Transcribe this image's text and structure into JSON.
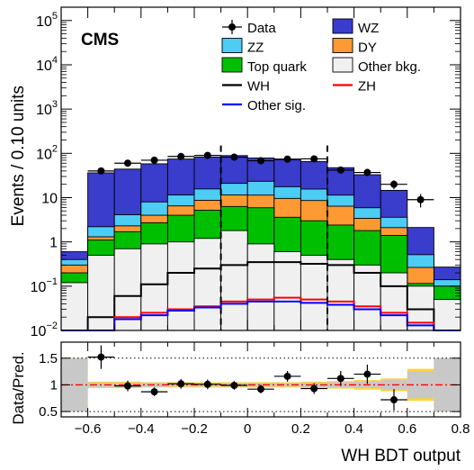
{
  "chart_data": [
    {
      "type": "stacked-histogram",
      "experiment_label": "CMS",
      "ylabel": "Events / 0.10 units",
      "yscale": "log",
      "ylim": [
        0.01,
        200000
      ],
      "xlim": [
        -0.7,
        0.8
      ],
      "y_ticks": [
        {
          "value": 0.01,
          "base": "10",
          "exp": "−2"
        },
        {
          "value": 0.1,
          "base": "10",
          "exp": "−1"
        },
        {
          "value": 1,
          "base": "1",
          "exp": ""
        },
        {
          "value": 10,
          "base": "10",
          "exp": ""
        },
        {
          "value": 100,
          "base": "10",
          "exp": "2"
        },
        {
          "value": 1000,
          "base": "10",
          "exp": "3"
        },
        {
          "value": 10000,
          "base": "10",
          "exp": "4"
        },
        {
          "value": 100000,
          "base": "10",
          "exp": "5"
        }
      ],
      "bin_edges": [
        -0.7,
        -0.6,
        -0.5,
        -0.4,
        -0.3,
        -0.2,
        -0.1,
        0.0,
        0.1,
        0.2,
        0.3,
        0.4,
        0.5,
        0.6,
        0.7,
        0.8
      ],
      "stack_order": [
        "Other bkg.",
        "Top quark",
        "DY",
        "ZZ",
        "WZ"
      ],
      "stack": [
        {
          "name": "Other bkg.",
          "color": "#f0f0f0",
          "values": [
            0.12,
            0.5,
            0.7,
            0.9,
            1.0,
            1.2,
            1.8,
            0.9,
            0.6,
            0.5,
            0.4,
            0.3,
            0.2,
            0.1,
            0.05
          ]
        },
        {
          "name": "Top quark",
          "color": "#00bf00",
          "values": [
            0.08,
            0.6,
            1.0,
            1.8,
            3.0,
            4.0,
            4.5,
            5.0,
            3.0,
            2.5,
            2.0,
            1.5,
            1.2,
            0.015,
            0.05
          ]
        },
        {
          "name": "DY",
          "color": "#ff9933",
          "values": [
            0.1,
            0.2,
            0.6,
            1.3,
            2.5,
            3.5,
            5.2,
            5.5,
            6.0,
            5.6,
            4.0,
            1.6,
            0.7,
            0.15,
            0.0
          ]
        },
        {
          "name": "ZZ",
          "color": "#4dccf4",
          "values": [
            0.1,
            0.9,
            1.8,
            4.0,
            5.0,
            7.0,
            9.5,
            12.0,
            8.0,
            7.0,
            5.0,
            2.5,
            1.5,
            0.25,
            0.04
          ]
        },
        {
          "name": "WZ",
          "color": "#3a3ccc",
          "values": [
            0.2,
            34,
            40,
            50,
            63,
            67,
            68,
            55,
            54,
            50,
            36,
            27,
            11,
            1.6,
            0.13
          ]
        }
      ],
      "signal": [
        {
          "name": "WH",
          "color": "#000000",
          "values": [
            0.01,
            0.02,
            0.06,
            0.11,
            0.2,
            0.25,
            0.3,
            0.35,
            0.35,
            0.32,
            0.3,
            0.2,
            0.1,
            0.03,
            0.01
          ]
        },
        {
          "name": "ZH",
          "color": "#ff0000",
          "values": [
            0.01,
            0.01,
            0.02,
            0.025,
            0.03,
            0.035,
            0.045,
            0.05,
            0.055,
            0.05,
            0.045,
            0.035,
            0.025,
            0.015,
            0.01
          ]
        },
        {
          "name": "Other sig.",
          "color": "#0000ff",
          "values": [
            0.01,
            0.01,
            0.018,
            0.022,
            0.028,
            0.033,
            0.04,
            0.045,
            0.045,
            0.042,
            0.038,
            0.03,
            0.022,
            0.013,
            0.01
          ]
        }
      ],
      "data": {
        "name": "Data",
        "x": [
          -0.65,
          -0.55,
          -0.45,
          -0.35,
          -0.25,
          -0.15,
          -0.05,
          0.05,
          0.15,
          0.25,
          0.35,
          0.45,
          0.55,
          0.65,
          0.75
        ],
        "y": [
          null,
          40,
          60,
          70,
          85,
          90,
          82,
          68,
          74,
          75,
          42,
          37,
          20,
          9,
          null
        ],
        "yerr": [
          null,
          6.3,
          7.7,
          8.4,
          9.2,
          9.5,
          9.1,
          8.2,
          8.6,
          8.7,
          6.5,
          6.1,
          4.5,
          3.0,
          null
        ]
      },
      "vlines": [
        -0.1,
        0.3
      ],
      "legend": {
        "placement": "top-right, two columns",
        "entries": [
          {
            "label": "Data",
            "style": "marker",
            "color": "#000000"
          },
          {
            "label": "WZ",
            "style": "fill",
            "color": "#3a3ccc"
          },
          {
            "label": "ZZ",
            "style": "fill",
            "color": "#4dccf4"
          },
          {
            "label": "DY",
            "style": "fill",
            "color": "#ff9933"
          },
          {
            "label": "Top quark",
            "style": "fill",
            "color": "#00bf00"
          },
          {
            "label": "Other bkg.",
            "style": "fill",
            "color": "#f0f0f0"
          },
          {
            "label": "WH",
            "style": "line",
            "color": "#000000"
          },
          {
            "label": "ZH",
            "style": "line",
            "color": "#ff0000"
          },
          {
            "label": "Other sig.",
            "style": "line",
            "color": "#0000ff"
          }
        ]
      }
    },
    {
      "type": "ratio",
      "ylabel": "Data/Pred.",
      "xlabel": "WH BDT output",
      "ylim": [
        0.4,
        1.8
      ],
      "xlim": [
        -0.7,
        0.8
      ],
      "y_tick_labels": [
        "0.5",
        "1",
        "1.5"
      ],
      "y_tick_values": [
        0.5,
        1,
        1.5
      ],
      "x_tick_labels": [
        "−0.6",
        "−0.4",
        "−0.2",
        "0",
        "0.2",
        "0.4",
        "0.6",
        "0.8"
      ],
      "x_tick_values": [
        -0.6,
        -0.4,
        -0.2,
        0,
        0.2,
        0.4,
        0.6,
        0.8
      ],
      "reference_line": 1,
      "dotted_lines": [
        0.5,
        1.5
      ],
      "points": {
        "x": [
          -0.55,
          -0.45,
          -0.35,
          -0.25,
          -0.15,
          -0.05,
          0.05,
          0.15,
          0.25,
          0.35,
          0.45,
          0.55
        ],
        "y": [
          1.52,
          0.98,
          0.87,
          1.02,
          1.01,
          0.99,
          0.92,
          1.16,
          0.93,
          1.12,
          1.2,
          0.72
        ],
        "yerr": [
          0.22,
          0.1,
          0.08,
          0.09,
          0.09,
          0.08,
          0.08,
          0.1,
          0.1,
          0.14,
          0.18,
          0.2
        ]
      },
      "band_yellow_halfwidth": [
        0.5,
        0.06,
        0.06,
        0.05,
        0.05,
        0.05,
        0.05,
        0.05,
        0.05,
        0.06,
        0.07,
        0.09,
        0.12,
        0.3,
        0.5
      ],
      "band_gray_halfwidth": [
        0.5,
        0.04,
        0.04,
        0.04,
        0.03,
        0.03,
        0.03,
        0.03,
        0.03,
        0.04,
        0.05,
        0.06,
        0.09,
        0.25,
        0.5
      ],
      "colors": {
        "yellow_band": "#ffd23f",
        "gray_band": "#c8c8c8",
        "reference_line": "#ff0000"
      }
    }
  ]
}
